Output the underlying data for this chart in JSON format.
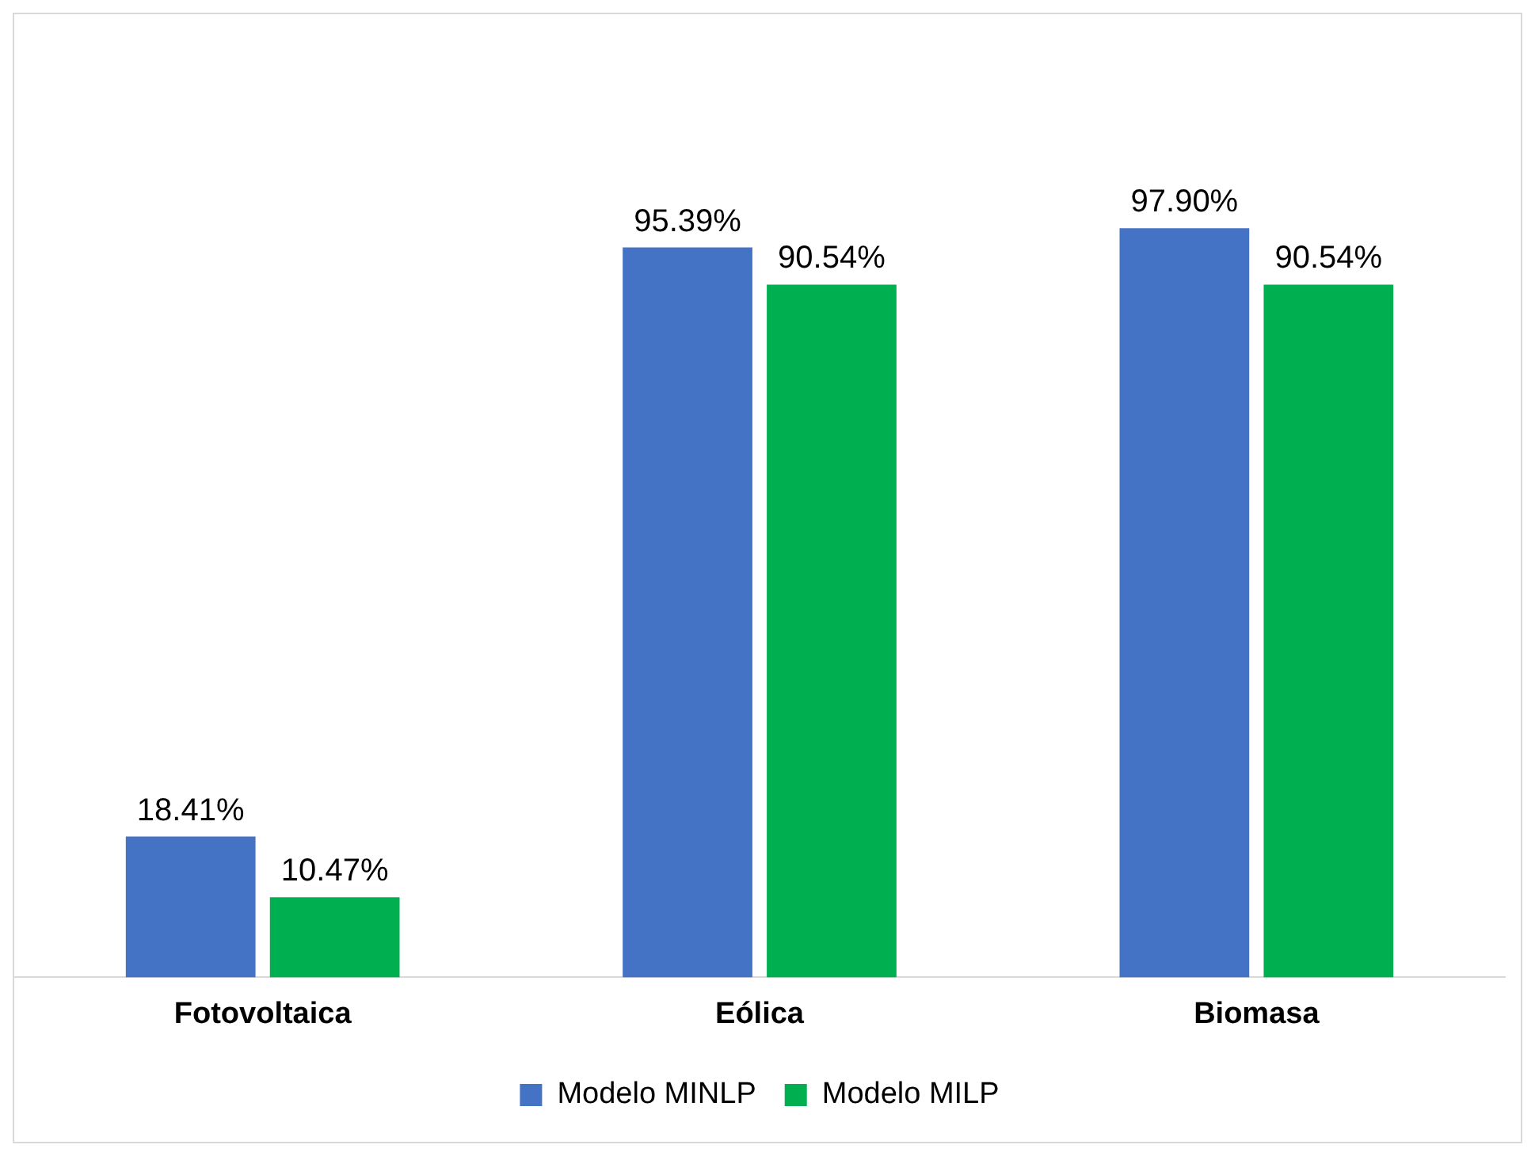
{
  "chart_data": {
    "type": "bar",
    "categories": [
      "Fotovoltaica",
      "Eólica",
      "Biomasa"
    ],
    "series": [
      {
        "name": "Modelo MINLP",
        "color": "#4472c4",
        "values": [
          18.41,
          95.39,
          97.9
        ],
        "value_labels": [
          "18.41%",
          "95.39%",
          "97.90%"
        ]
      },
      {
        "name": "Modelo MILP",
        "color": "#00b050",
        "values": [
          10.47,
          90.54,
          90.54
        ],
        "value_labels": [
          "10.47%",
          "90.54%",
          "90.54%"
        ]
      }
    ],
    "tick_labels": "x",
    "grid": false,
    "legend": "bottom"
  }
}
